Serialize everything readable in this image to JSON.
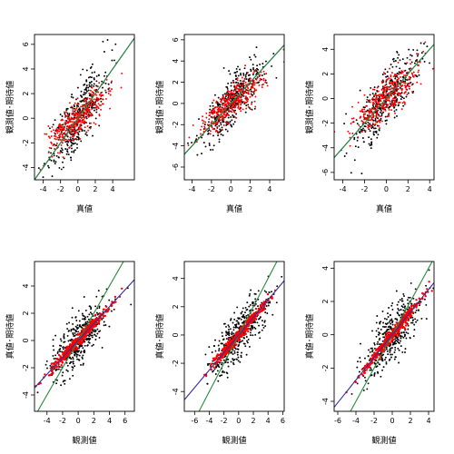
{
  "chart_data": [
    {
      "type": "scatter",
      "xlabel": "真値",
      "ylabel": "観測値･期待値",
      "xlim": [
        -5,
        6.5
      ],
      "ylim": [
        -5,
        6.8
      ],
      "xticks": [
        -4,
        -2,
        0,
        2,
        4
      ],
      "yticks": [
        -4,
        -2,
        0,
        2,
        4,
        6
      ],
      "series": [
        {
          "kind": "points",
          "color": "#000000",
          "slope": 1.0,
          "noise": 1.25,
          "xsd": 1.7,
          "n": 380
        },
        {
          "kind": "points",
          "color": "#ff0000",
          "slope": 0.6,
          "noise": 0.7,
          "xsd": 1.7,
          "n": 380
        }
      ],
      "lines": [
        {
          "color": "#1f4e9c",
          "slope": 1.0,
          "intercept": 0
        },
        {
          "color": "#2a8a3a",
          "slope": 1.0,
          "intercept": 0
        }
      ]
    },
    {
      "type": "scatter",
      "xlabel": "真値",
      "ylabel": "観測値･期待値",
      "xlim": [
        -4.8,
        5.5
      ],
      "ylim": [
        -7.2,
        6.5
      ],
      "xticks": [
        -4,
        -2,
        0,
        2,
        4
      ],
      "yticks": [
        -6,
        -4,
        -2,
        0,
        2,
        4,
        6
      ],
      "series": [
        {
          "kind": "points",
          "color": "#000000",
          "slope": 1.0,
          "noise": 1.1,
          "xsd": 1.6,
          "n": 380
        },
        {
          "kind": "points",
          "color": "#ff0000",
          "slope": 0.7,
          "noise": 0.75,
          "xsd": 1.6,
          "n": 380
        }
      ],
      "lines": [
        {
          "color": "#1f4e9c",
          "slope": 1.0,
          "intercept": 0
        },
        {
          "color": "#2a8a3a",
          "slope": 1.0,
          "intercept": 0
        }
      ]
    },
    {
      "type": "scatter",
      "xlabel": "真値",
      "ylabel": "観測値･期待値",
      "xlim": [
        -4.8,
        4.4
      ],
      "ylim": [
        -6.6,
        5.2
      ],
      "xticks": [
        -4,
        -2,
        0,
        2,
        4
      ],
      "yticks": [
        -6,
        -4,
        -2,
        0,
        2,
        4
      ],
      "series": [
        {
          "kind": "points",
          "color": "#000000",
          "slope": 1.0,
          "noise": 1.1,
          "xsd": 1.5,
          "n": 380
        },
        {
          "kind": "points",
          "color": "#ff0000",
          "slope": 0.75,
          "noise": 0.8,
          "xsd": 1.5,
          "n": 380
        }
      ],
      "lines": [
        {
          "color": "#1f4e9c",
          "slope": 1.0,
          "intercept": 0
        },
        {
          "color": "#2a8a3a",
          "slope": 1.0,
          "intercept": 0
        }
      ]
    },
    {
      "type": "scatter",
      "xlabel": "観測値",
      "ylabel": "真値･期待値",
      "xlim": [
        -5.6,
        7.2
      ],
      "ylim": [
        -5.2,
        5.8
      ],
      "xticks": [
        -4,
        -2,
        0,
        2,
        4,
        6
      ],
      "yticks": [
        -4,
        -2,
        0,
        2,
        4
      ],
      "series": [
        {
          "kind": "points",
          "color": "#000000",
          "slope": 0.55,
          "noise": 0.95,
          "xsd": 1.9,
          "n": 400
        },
        {
          "kind": "band",
          "color": "#ff0000",
          "slope": 0.62,
          "noise": 0.2,
          "xsd": 1.9,
          "n": 400
        }
      ],
      "lines": [
        {
          "color": "#2a8a3a",
          "slope": 1.0,
          "intercept": 0
        },
        {
          "color": "#3a2a9c",
          "slope": 0.62,
          "intercept": 0
        }
      ]
    },
    {
      "type": "scatter",
      "xlabel": "観測値",
      "ylabel": "真値･期待値",
      "xlim": [
        -7.4,
        6.2
      ],
      "ylim": [
        -5.4,
        5.2
      ],
      "xticks": [
        -6,
        -4,
        -2,
        0,
        2,
        4,
        6
      ],
      "yticks": [
        -4,
        -2,
        0,
        2,
        4
      ],
      "series": [
        {
          "kind": "points",
          "color": "#000000",
          "slope": 0.55,
          "noise": 0.9,
          "xsd": 1.9,
          "n": 400
        },
        {
          "kind": "band",
          "color": "#ff0000",
          "slope": 0.62,
          "noise": 0.2,
          "xsd": 1.9,
          "n": 400
        }
      ],
      "lines": [
        {
          "color": "#2a8a3a",
          "slope": 1.0,
          "intercept": 0
        },
        {
          "color": "#3a2a9c",
          "slope": 0.62,
          "intercept": 0
        }
      ]
    },
    {
      "type": "scatter",
      "xlabel": "観測値",
      "ylabel": "真値･期待値",
      "xlim": [
        -6.4,
        4.6
      ],
      "ylim": [
        -4.6,
        4.4
      ],
      "xticks": [
        -6,
        -4,
        -2,
        0,
        2,
        4
      ],
      "yticks": [
        -4,
        -2,
        0,
        2,
        4
      ],
      "series": [
        {
          "kind": "points",
          "color": "#000000",
          "slope": 0.6,
          "noise": 0.8,
          "xsd": 1.7,
          "n": 400
        },
        {
          "kind": "band",
          "color": "#ff0000",
          "slope": 0.68,
          "noise": 0.18,
          "xsd": 1.7,
          "n": 400
        }
      ],
      "lines": [
        {
          "color": "#2a8a3a",
          "slope": 1.0,
          "intercept": 0
        },
        {
          "color": "#3a2a9c",
          "slope": 0.68,
          "intercept": 0
        }
      ]
    }
  ]
}
